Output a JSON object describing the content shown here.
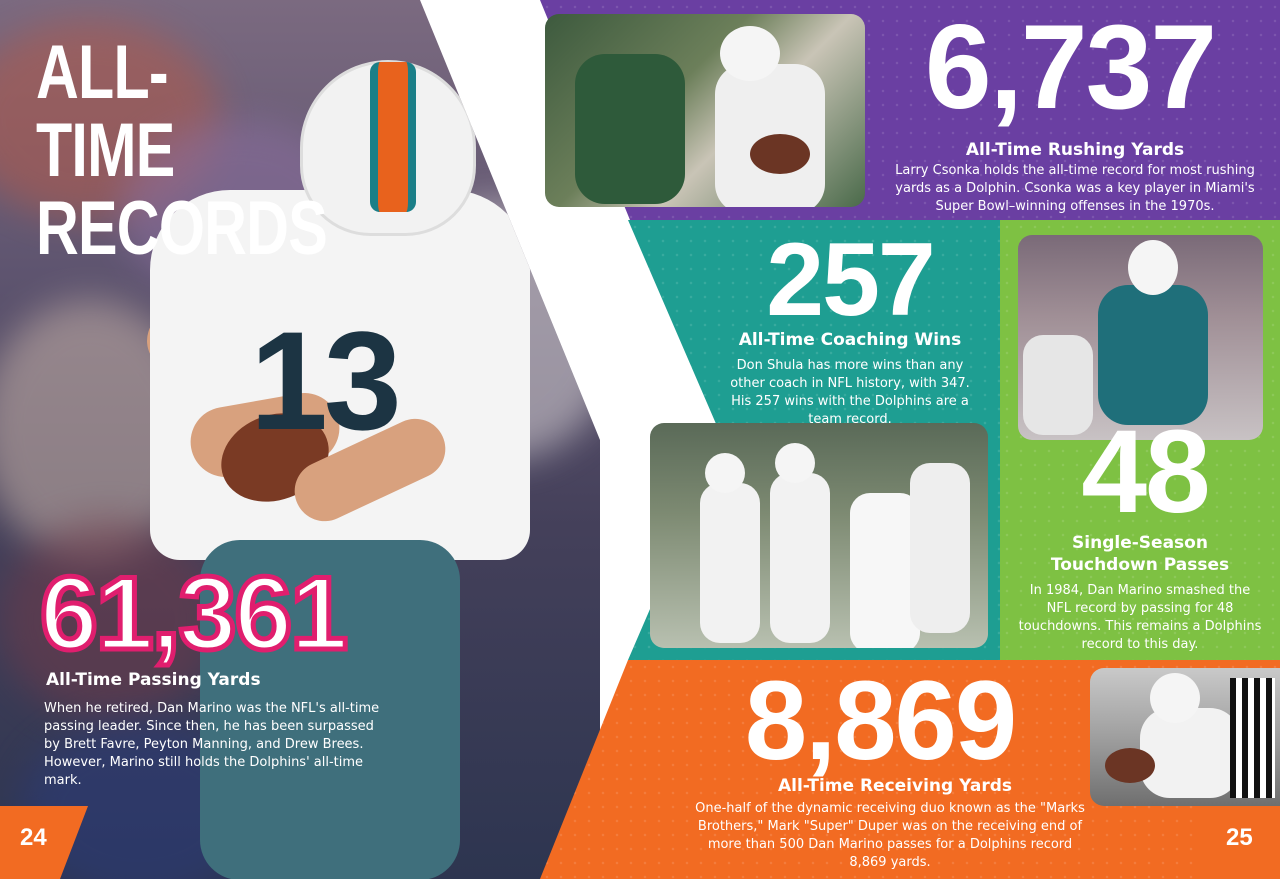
{
  "left_page": {
    "title_line1": "ALL-TIME",
    "title_line2": "RECORDS",
    "stat": {
      "number": "61,361",
      "heading": "All-Time Passing Yards",
      "body": "When he retired, Dan Marino was the NFL's all-time passing leader. Since then, he has been surpassed by Brett Favre, Peyton Manning, and Drew Brees. However, Marino still holds the Dolphins' all-time mark."
    },
    "page_number": "24",
    "jersey_number": "13"
  },
  "right_page": {
    "rushing": {
      "number": "6,737",
      "heading": "All-Time Rushing Yards",
      "body": "Larry Csonka holds the all-time record for most rushing yards as a Dolphin. Csonka was a key player in Miami's Super Bowl–winning offenses in the 1970s."
    },
    "coaching": {
      "number": "257",
      "heading": "All-Time Coaching Wins",
      "body": "Don Shula has more wins than any other coach in NFL history, with 347. His 257 wins with the Dolphins are a team record."
    },
    "touchdowns": {
      "number": "48",
      "heading_line1": "Single-Season",
      "heading_line2": "Touchdown Passes",
      "body": "In 1984, Dan Marino smashed the NFL record by passing for 48 touchdowns. This remains a Dolphins record to this day."
    },
    "receiving": {
      "number": "8,869",
      "heading": "All-Time Receiving Yards",
      "body": "One-half of the dynamic receiving duo known as the \"Marks Brothers,\" Mark \"Super\" Duper was on the receiving end of more than 500 Dan Marino passes for a Dolphins record 8,869 yards."
    },
    "page_number": "25"
  },
  "colors": {
    "purple": "#6a3fa2",
    "teal": "#1e9e92",
    "green": "#7ec143",
    "orange": "#f26b22",
    "magenta": "#e01e6e"
  }
}
